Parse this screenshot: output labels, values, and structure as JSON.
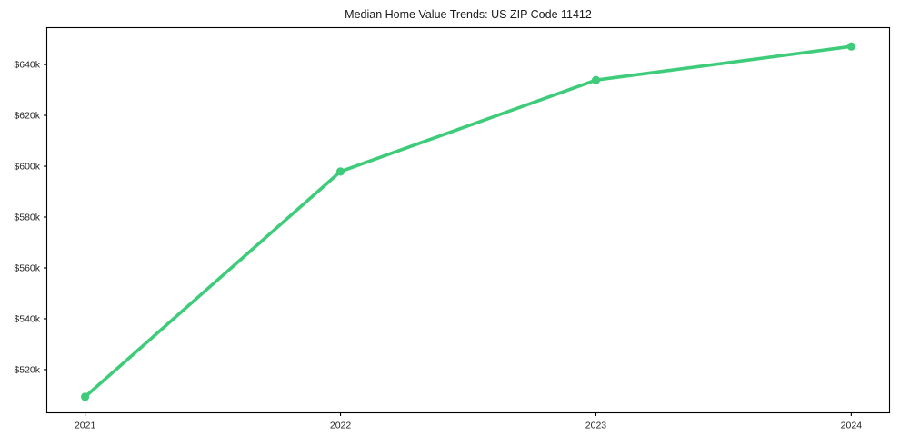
{
  "page": {
    "background_color": "#ffffff"
  },
  "chart_data": {
    "type": "line",
    "title": "Median Home Value Trends: US ZIP Code 11412",
    "x": [
      2021,
      2022,
      2023,
      2024
    ],
    "x_tick_labels": [
      "2021",
      "2022",
      "2023",
      "2024"
    ],
    "values": [
      509300,
      597900,
      633900,
      647100
    ],
    "y_tick_values": [
      520000,
      540000,
      560000,
      580000,
      600000,
      620000,
      640000
    ],
    "y_tick_labels": [
      "$520k",
      "$540k",
      "$560k",
      "$580k",
      "$600k",
      "$620k",
      "$640k"
    ],
    "xlim": [
      2020.85,
      2024.15
    ],
    "ylim": [
      503000,
      654500
    ],
    "xlabel": "",
    "ylabel": "",
    "grid": false,
    "legend": "none",
    "line_color": "#3ecc7a",
    "marker": "circle",
    "axis_color": "#000000",
    "text_color": "#262626"
  }
}
